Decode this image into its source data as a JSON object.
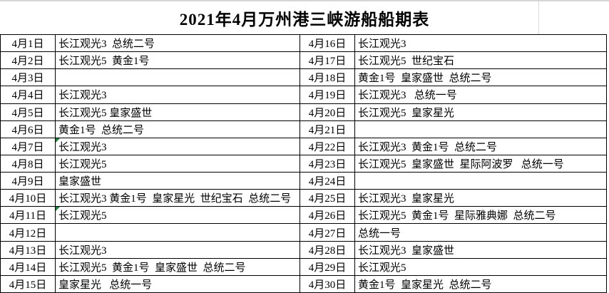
{
  "title": "2021年4月万州港三峡游船船期表",
  "colors": {
    "table_border": "#000000",
    "title_gridline": "#d9d9d9",
    "error_marker_green": "#188038",
    "text": "#000000",
    "background": "#ffffff"
  },
  "schedule": {
    "left": [
      {
        "date": "4月1日",
        "ships": "长江观光3  总统二号",
        "error_marker": false
      },
      {
        "date": "4月2日",
        "ships": "长江观光5  黄金1号",
        "error_marker": false
      },
      {
        "date": "4月3日",
        "ships": "",
        "error_marker": false
      },
      {
        "date": "4月4日",
        "ships": "长江观光3",
        "error_marker": false
      },
      {
        "date": "4月5日",
        "ships": "长江观光5 皇家盛世",
        "error_marker": false
      },
      {
        "date": "4月6日",
        "ships": "黄金1号  总统二号",
        "error_marker": false
      },
      {
        "date": "4月7日",
        "ships": "长江观光3",
        "error_marker": true
      },
      {
        "date": "4月8日",
        "ships": "长江观光5",
        "error_marker": false
      },
      {
        "date": "4月9日",
        "ships": "皇家盛世",
        "error_marker": false
      },
      {
        "date": "4月10日",
        "ships": "长江观光3 黄金1号  皇家星光  世纪宝石  总统二号",
        "error_marker": false
      },
      {
        "date": "4月11日",
        "ships": "长江观光5",
        "error_marker": true
      },
      {
        "date": "4月12日",
        "ships": "",
        "error_marker": false
      },
      {
        "date": "4月13日",
        "ships": "长江观光3",
        "error_marker": false
      },
      {
        "date": "4月14日",
        "ships": "长江观光5  黄金1号  皇家盛世  总统二号",
        "error_marker": false
      },
      {
        "date": "4月15日",
        "ships": "皇家星光   总统一号",
        "error_marker": false
      }
    ],
    "right": [
      {
        "date": "4月16日",
        "ships": "长江观光3",
        "error_marker": false
      },
      {
        "date": "4月17日",
        "ships": "长江观光5  世纪宝石",
        "error_marker": false
      },
      {
        "date": "4月18日",
        "ships": "黄金1号  皇家盛世  总统二号",
        "error_marker": false
      },
      {
        "date": "4月19日",
        "ships": "长江观光3   总统一号",
        "error_marker": false
      },
      {
        "date": "4月20日",
        "ships": "长江观光5  皇家星光",
        "error_marker": false
      },
      {
        "date": "4月21日",
        "ships": "",
        "error_marker": false
      },
      {
        "date": "4月22日",
        "ships": "长江观光3  黄金1号  总统二号",
        "error_marker": false
      },
      {
        "date": "4月23日",
        "ships": "长江观光5  皇家盛世  星际阿波罗   总统一号",
        "error_marker": false
      },
      {
        "date": "4月24日",
        "ships": "",
        "error_marker": false
      },
      {
        "date": "4月25日",
        "ships": "长江观光3  皇家星光",
        "error_marker": false
      },
      {
        "date": "4月26日",
        "ships": "长江观光5  黄金1号  星际雅典娜  总统二号",
        "error_marker": false
      },
      {
        "date": "4月27日",
        "ships": "总统一号",
        "error_marker": false
      },
      {
        "date": "4月28日",
        "ships": "长江观光3  皇家盛世",
        "error_marker": false
      },
      {
        "date": "4月29日",
        "ships": "长江观光5",
        "error_marker": false
      },
      {
        "date": "4月30日",
        "ships": "黄金1号  皇家星光  总统二号",
        "error_marker": false
      }
    ]
  }
}
